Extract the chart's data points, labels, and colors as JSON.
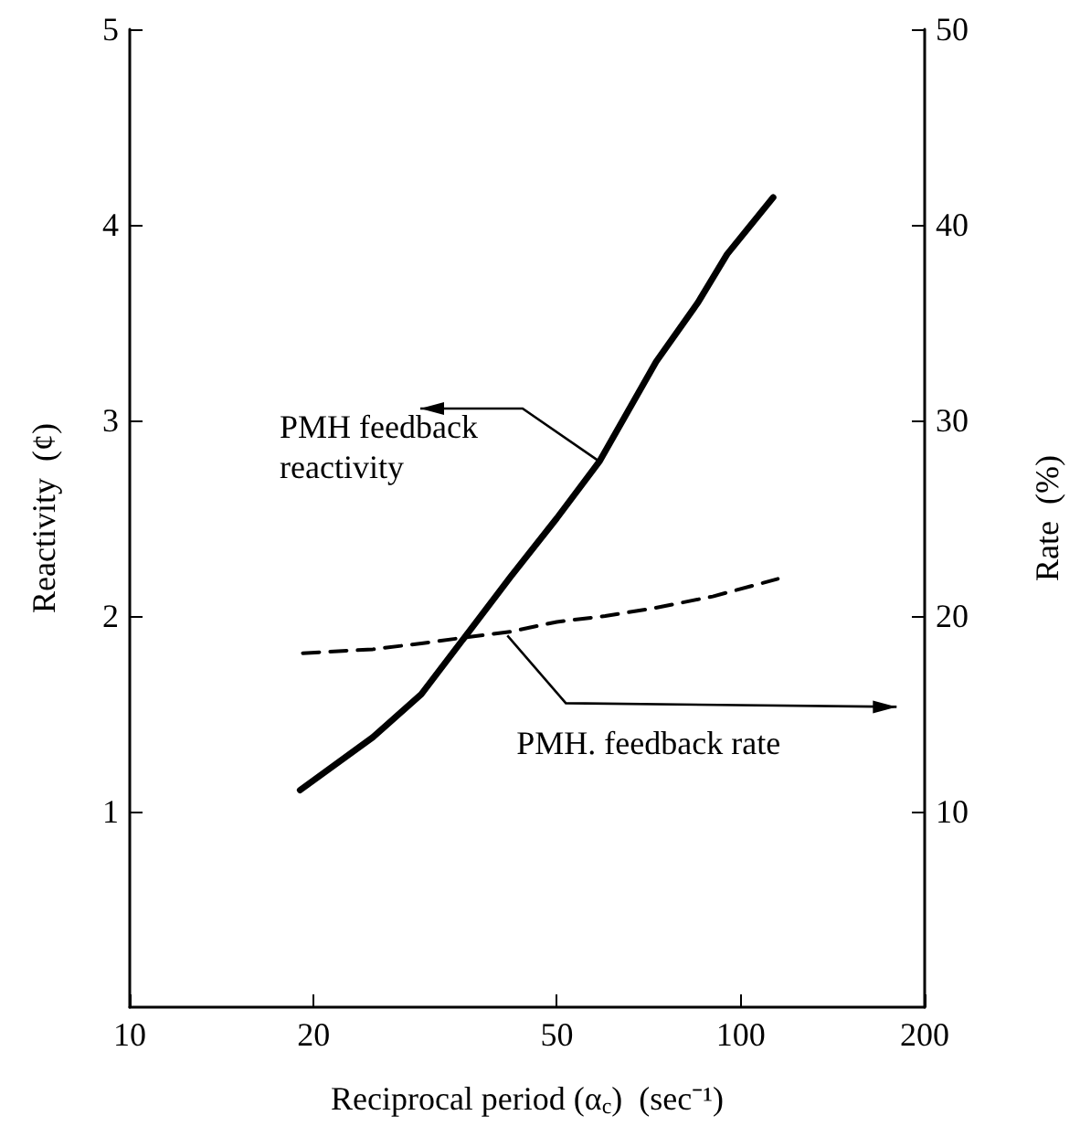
{
  "chart_data": {
    "type": "line",
    "xlabel": "Reciprocal period (α$_{c}$)  (sec⁻¹)",
    "ylabel": "Reactivity  (¢)",
    "y2label": "Rate  (%)",
    "log": "x",
    "xlim": [
      10,
      200
    ],
    "xticks": [
      10,
      20,
      50,
      100,
      200
    ],
    "ylim": [
      0,
      5
    ],
    "yticks": [
      1,
      2,
      3,
      4,
      5
    ],
    "y2lim": [
      0,
      50
    ],
    "y2ticks": [
      10,
      20,
      30,
      40,
      50
    ],
    "grid": false,
    "marker": "none",
    "series": [
      {
        "color": "#000000",
        "line_style": "solid",
        "x": [
          19,
          25,
          30,
          35.3,
          42,
          50,
          58.7,
          72.7,
          85,
          95,
          113
        ],
        "values": [
          1.11,
          1.38,
          1.6,
          1.89,
          2.2,
          2.5,
          2.79,
          3.3,
          3.6,
          3.85,
          4.14
        ]
      },
      {
        "color": "#000000",
        "line_style": "dashed",
        "axis": "y2",
        "x": [
          19.2,
          25,
          30,
          35.3,
          42,
          50,
          60,
          72,
          90,
          115
        ],
        "values": [
          18.1,
          18.3,
          18.6,
          18.9,
          19.2,
          19.7,
          20.0,
          20.4,
          21.0,
          21.9
        ]
      }
    ],
    "annotations": [
      {
        "text": "PMH feedback\nreactivity",
        "x": 58.7,
        "y": 2.79
      },
      {
        "text": "PMH. feedback rate",
        "x": 41.5,
        "y": 1.9
      }
    ]
  }
}
